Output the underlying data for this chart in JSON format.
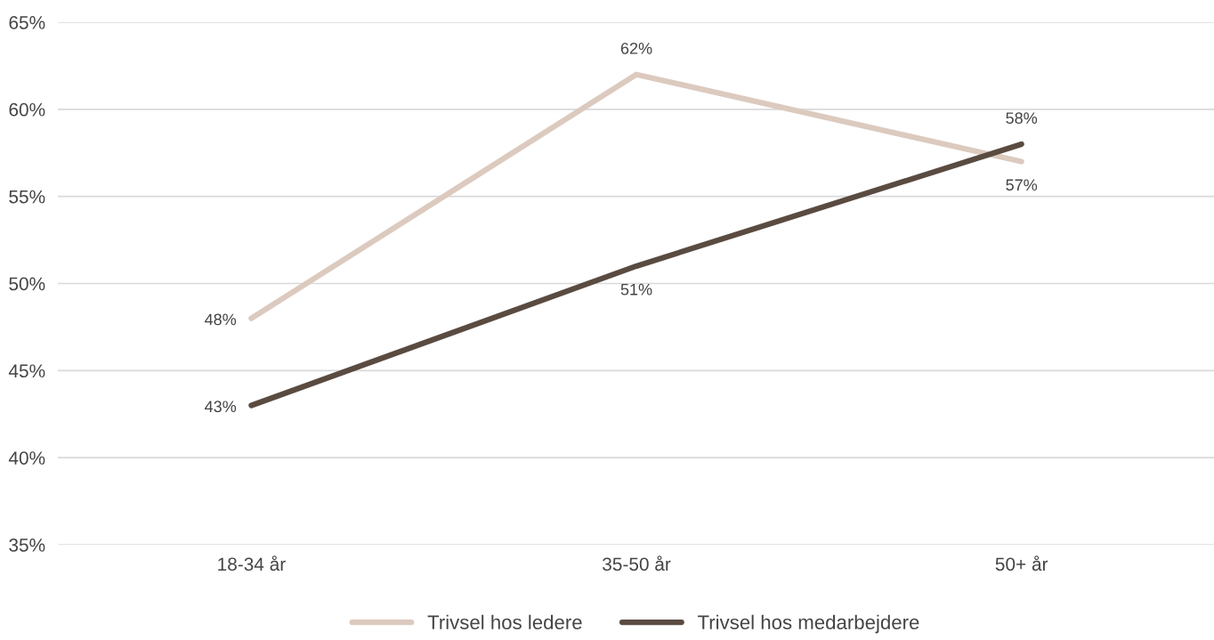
{
  "chart_data": {
    "type": "line",
    "categories": [
      "18-34 år",
      "35-50 år",
      "50+ år"
    ],
    "series": [
      {
        "name": "Trivsel hos ledere",
        "color": "#dccabf",
        "values": [
          48,
          62,
          57
        ],
        "value_labels": [
          "48%",
          "62%",
          "57%"
        ]
      },
      {
        "name": "Trivsel hos medarbejdere",
        "color": "#5a4b41",
        "values": [
          43,
          51,
          58
        ],
        "value_labels": [
          "43%",
          "51%",
          "58%"
        ]
      }
    ],
    "ylim": [
      35,
      65
    ],
    "yticks": [
      {
        "value": 35,
        "label": "35%"
      },
      {
        "value": 40,
        "label": "40%"
      },
      {
        "value": 45,
        "label": "45%"
      },
      {
        "value": 50,
        "label": "50%"
      },
      {
        "value": 55,
        "label": "55%"
      },
      {
        "value": 60,
        "label": "60%"
      },
      {
        "value": 65,
        "label": "65%"
      }
    ],
    "grid": "y",
    "legend": "bottom",
    "marker": "none",
    "line_style": "solid"
  }
}
